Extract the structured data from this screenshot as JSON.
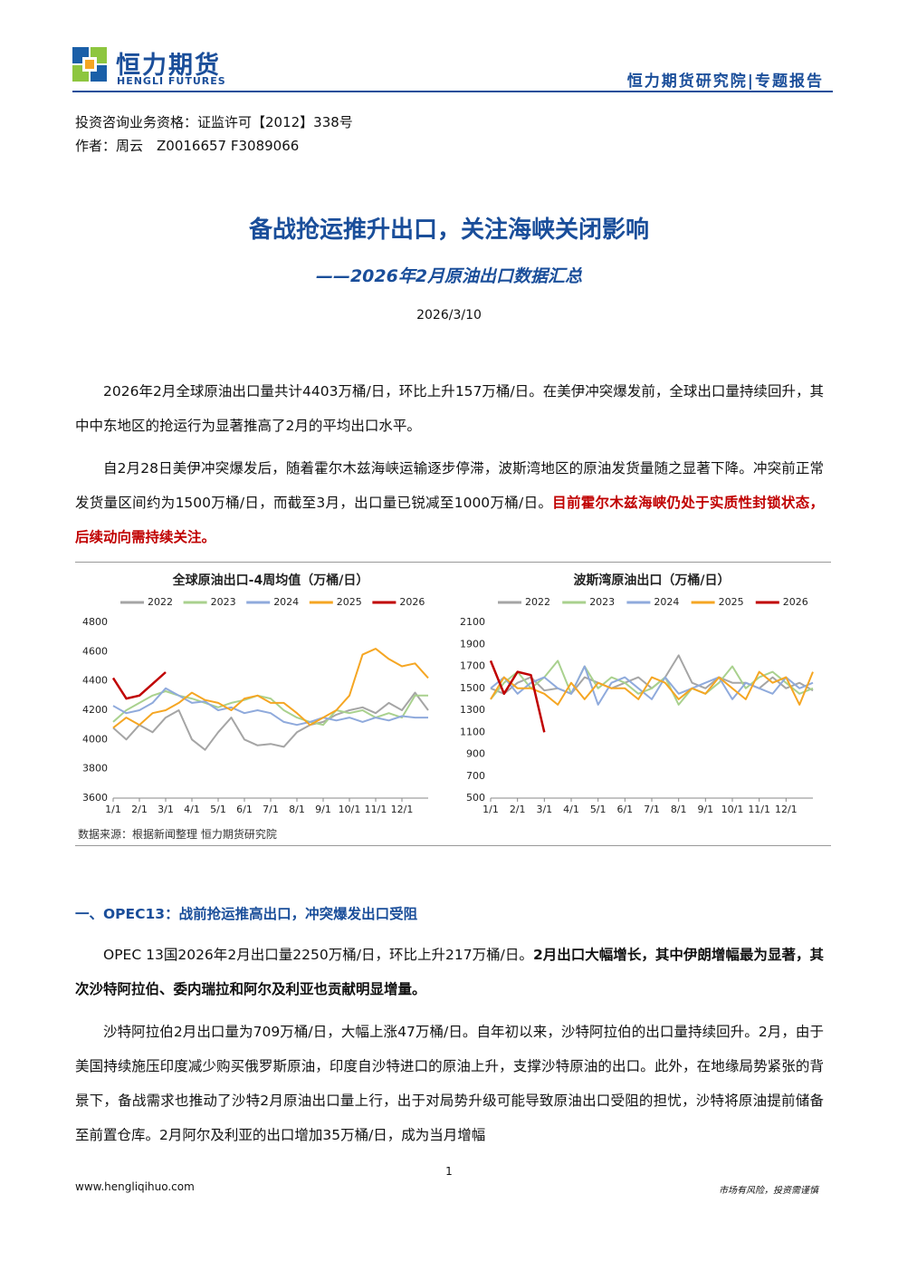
{
  "header": {
    "logo_cn": "恒力期货",
    "logo_en": "HENGLI FUTURES",
    "right": "恒力期货研究院|专题报告"
  },
  "meta": {
    "license": "投资咨询业务资格：证监许可【2012】338号",
    "author": "作者：周云　Z0016657 F3089066"
  },
  "title": "备战抢运推升出口，关注海峡关闭影响",
  "subtitle": "——2026年2月原油出口数据汇总",
  "date": "2026/3/10",
  "intro_paragraphs": [
    [
      "2026年2月全球原油出口量共计4403万桶/日，环比上升157万桶/日。在美伊冲突爆发前，全球出口量持续回升，其中中东地区的抢运行为显著推高了2月的平均出口水平。"
    ],
    [
      "自2月28日美伊冲突爆发后，随着霍尔木兹海峡运输逐步停滞，波斯湾地区的原油发货量随之显著下降。冲突前正常发货量区间约为1500万桶/日，而截至3月，出口量已锐减至1000万桶/日。",
      "目前霍尔木兹海峡仍处于实质性封锁状态，后续动向需持续关注。"
    ]
  ],
  "chart_data": [
    {
      "type": "line",
      "title": "全球原油出口-4周均值（万桶/日）",
      "legend": "top",
      "grid": false,
      "x": [
        1,
        1.5,
        2,
        2.5,
        3,
        3.5,
        4,
        4.5,
        5,
        5.5,
        6,
        6.5,
        7,
        7.5,
        8,
        8.5,
        9,
        9.5,
        10,
        10.5,
        11,
        11.5,
        12,
        12.5,
        13
      ],
      "xlim": [
        1,
        13
      ],
      "xticks": [
        {
          "value": 1,
          "label": "1/1"
        },
        {
          "value": 2,
          "label": "2/1"
        },
        {
          "value": 3,
          "label": "3/1"
        },
        {
          "value": 4,
          "label": "4/1"
        },
        {
          "value": 5,
          "label": "5/1"
        },
        {
          "value": 6,
          "label": "6/1"
        },
        {
          "value": 7,
          "label": "7/1"
        },
        {
          "value": 8,
          "label": "8/1"
        },
        {
          "value": 9,
          "label": "9/1"
        },
        {
          "value": 10,
          "label": "10/1"
        },
        {
          "value": 11,
          "label": "11/1"
        },
        {
          "value": 12,
          "label": "12/1"
        }
      ],
      "ylim": [
        3600,
        4800
      ],
      "yticks": [
        3600,
        3800,
        4000,
        4200,
        4400,
        4600,
        4800
      ],
      "series": [
        {
          "name": "2022",
          "color": "#a5a5a5",
          "values": [
            4080,
            4000,
            4100,
            4050,
            4150,
            4200,
            4000,
            3930,
            4050,
            4150,
            4000,
            3960,
            3970,
            3950,
            4050,
            4100,
            4120,
            4170,
            4200,
            4220,
            4180,
            4250,
            4200,
            4320,
            4200
          ]
        },
        {
          "name": "2023",
          "color": "#a9d18e",
          "values": [
            4120,
            4200,
            4250,
            4300,
            4330,
            4300,
            4280,
            4250,
            4220,
            4250,
            4270,
            4300,
            4280,
            4200,
            4150,
            4120,
            4100,
            4200,
            4180,
            4200,
            4150,
            4180,
            4150,
            4300,
            4300
          ]
        },
        {
          "name": "2024",
          "color": "#8faadc",
          "values": [
            4230,
            4180,
            4200,
            4250,
            4350,
            4300,
            4250,
            4260,
            4200,
            4220,
            4180,
            4200,
            4180,
            4120,
            4100,
            4120,
            4150,
            4130,
            4150,
            4120,
            4150,
            4130,
            4160,
            4150,
            4150
          ]
        },
        {
          "name": "2025",
          "color": "#f5a623",
          "values": [
            4080,
            4150,
            4100,
            4180,
            4200,
            4250,
            4320,
            4270,
            4250,
            4200,
            4280,
            4300,
            4250,
            4250,
            4180,
            4100,
            4150,
            4200,
            4300,
            4580,
            4620,
            4550,
            4500,
            4520,
            4420
          ]
        },
        {
          "name": "2026",
          "color": "#c00000",
          "values": [
            4420,
            4280,
            4300,
            4380,
            4460,
            null,
            null,
            null,
            null,
            null,
            null,
            null,
            null,
            null,
            null,
            null,
            null,
            null,
            null,
            null,
            null,
            null,
            null,
            null,
            null
          ]
        }
      ]
    },
    {
      "type": "line",
      "title": "波斯湾原油出口（万桶/日）",
      "legend": "top",
      "grid": false,
      "x": [
        1,
        1.5,
        2,
        2.5,
        3,
        3.5,
        4,
        4.5,
        5,
        5.5,
        6,
        6.5,
        7,
        7.5,
        8,
        8.5,
        9,
        9.5,
        10,
        10.5,
        11,
        11.5,
        12,
        12.5,
        13
      ],
      "xlim": [
        1,
        13
      ],
      "xticks": [
        {
          "value": 1,
          "label": "1/1"
        },
        {
          "value": 2,
          "label": "2/1"
        },
        {
          "value": 3,
          "label": "3/1"
        },
        {
          "value": 4,
          "label": "4/1"
        },
        {
          "value": 5,
          "label": "5/1"
        },
        {
          "value": 6,
          "label": "6/1"
        },
        {
          "value": 7,
          "label": "7/1"
        },
        {
          "value": 8,
          "label": "8/1"
        },
        {
          "value": 9,
          "label": "9/1"
        },
        {
          "value": 10,
          "label": "10/1"
        },
        {
          "value": 11,
          "label": "11/1"
        },
        {
          "value": 12,
          "label": "12/1"
        }
      ],
      "ylim": [
        500,
        2100
      ],
      "yticks": [
        500,
        700,
        900,
        1100,
        1300,
        1500,
        1700,
        1900,
        2100
      ],
      "series": [
        {
          "name": "2022",
          "color": "#a5a5a5",
          "values": [
            1500,
            1450,
            1550,
            1600,
            1480,
            1500,
            1450,
            1600,
            1550,
            1500,
            1550,
            1600,
            1500,
            1600,
            1800,
            1550,
            1500,
            1600,
            1550,
            1550,
            1500,
            1600,
            1500,
            1550,
            1480
          ]
        },
        {
          "name": "2023",
          "color": "#a9d18e",
          "values": [
            1400,
            1550,
            1650,
            1500,
            1600,
            1750,
            1450,
            1700,
            1500,
            1600,
            1550,
            1450,
            1500,
            1600,
            1350,
            1500,
            1450,
            1550,
            1700,
            1500,
            1600,
            1650,
            1550,
            1450,
            1500
          ]
        },
        {
          "name": "2024",
          "color": "#8faadc",
          "values": [
            1500,
            1600,
            1450,
            1550,
            1600,
            1500,
            1450,
            1700,
            1350,
            1550,
            1600,
            1500,
            1400,
            1600,
            1450,
            1500,
            1550,
            1600,
            1400,
            1550,
            1500,
            1450,
            1600,
            1500,
            1550
          ]
        },
        {
          "name": "2025",
          "color": "#f5a623",
          "values": [
            1400,
            1600,
            1500,
            1500,
            1450,
            1350,
            1550,
            1400,
            1550,
            1500,
            1500,
            1400,
            1600,
            1550,
            1400,
            1500,
            1450,
            1600,
            1500,
            1400,
            1650,
            1550,
            1600,
            1350,
            1650
          ]
        },
        {
          "name": "2026",
          "color": "#c00000",
          "values": [
            1750,
            1450,
            1650,
            1620,
            1100,
            null,
            null,
            null,
            null,
            null,
            null,
            null,
            null,
            null,
            null,
            null,
            null,
            null,
            null,
            null,
            null,
            null,
            null,
            null,
            null
          ]
        }
      ]
    }
  ],
  "chart_source": "数据来源：根据新闻整理 恒力期货研究院",
  "section_1": {
    "heading": "一、OPEC13：战前抢运推高出口，冲突爆发出口受阻",
    "paragraphs": [
      [
        "OPEC 13国2026年2月出口量2250万桶/日，环比上升217万桶/日。",
        "2月出口大幅增长，其中伊朗增幅最为显著，其次沙特阿拉伯、委内瑞拉和阿尔及利亚也贡献明显增量。"
      ],
      [
        "沙特阿拉伯2月出口量为709万桶/日，大幅上涨47万桶/日。自年初以来，沙特阿拉伯的出口量持续回升。2月，由于美国持续施压印度减少购买俄罗斯原油，印度自沙特进口的原油上升，支撑沙特原油的出口。此外，在地缘局势紧张的背景下，备战需求也推动了沙特2月原油出口量上行，出于对局势升级可能导致原油出口受阻的担忧，沙特将原油提前储备至前置仓库。2月阿尔及利亚的出口增加35万桶/日，成为当月增幅"
      ]
    ]
  },
  "footer": {
    "page": "1",
    "url": "www.hengliqihuo.com",
    "disclaimer": "市场有风险，投资需谨慎"
  }
}
